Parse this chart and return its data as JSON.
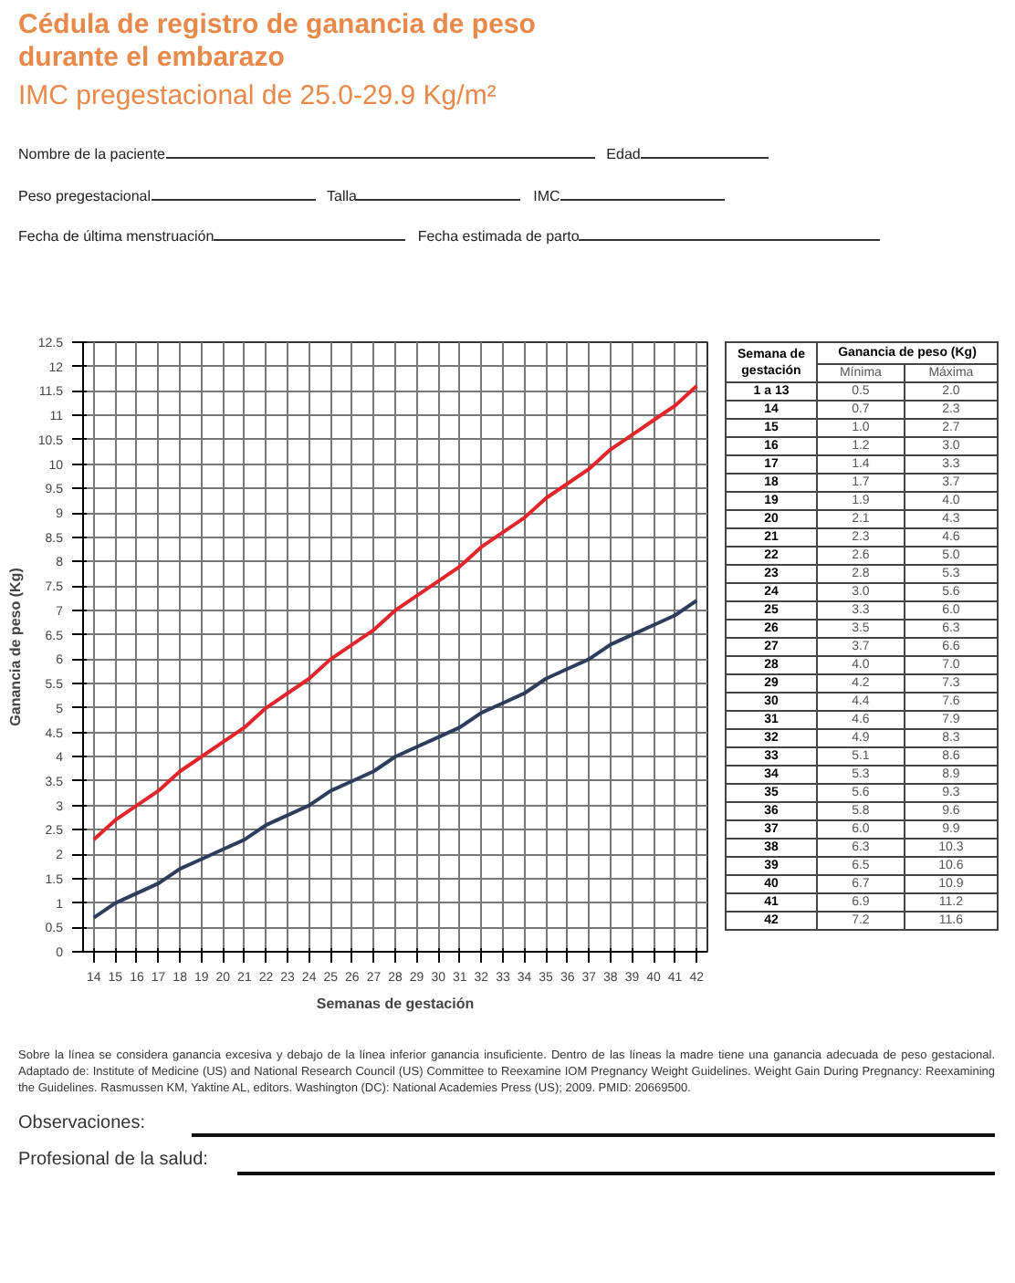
{
  "chart_data": [
    {
      "type": "line",
      "title": "Cédula de registro de ganancia de peso durante el embarazo",
      "subtitle": "IMC pregestacional de 25.0-29.9 Kg/m²",
      "xlabel": "Semanas de gestación",
      "ylabel": "Ganancia de peso (Kg)",
      "x": [
        14,
        15,
        16,
        17,
        18,
        19,
        20,
        21,
        22,
        23,
        24,
        25,
        26,
        27,
        28,
        29,
        30,
        31,
        32,
        33,
        34,
        35,
        36,
        37,
        38,
        39,
        40,
        41,
        42
      ],
      "series": [
        {
          "color": "#e3242b",
          "values": [
            2.3,
            2.7,
            3.0,
            3.3,
            3.7,
            4.0,
            4.3,
            4.6,
            5.0,
            5.3,
            5.6,
            6.0,
            6.3,
            6.6,
            7.0,
            7.3,
            7.6,
            7.9,
            8.3,
            8.6,
            8.9,
            9.3,
            9.6,
            9.9,
            10.3,
            10.6,
            10.9,
            11.2,
            11.6
          ]
        },
        {
          "color": "#2e3d5c",
          "values": [
            0.7,
            1.0,
            1.2,
            1.4,
            1.7,
            1.9,
            2.1,
            2.3,
            2.6,
            2.8,
            3.0,
            3.3,
            3.5,
            3.7,
            4.0,
            4.2,
            4.4,
            4.6,
            4.9,
            5.1,
            5.3,
            5.6,
            5.8,
            6.0,
            6.3,
            6.5,
            6.7,
            6.9,
            7.2
          ]
        }
      ],
      "xlim": [
        13.5,
        42.5
      ],
      "ylim": [
        0,
        12.5
      ],
      "xticks": [
        14,
        15,
        16,
        17,
        18,
        19,
        20,
        21,
        22,
        23,
        24,
        25,
        26,
        27,
        28,
        29,
        30,
        31,
        32,
        33,
        34,
        35,
        36,
        37,
        38,
        39,
        40,
        41,
        42
      ],
      "yticks": [
        0,
        0.5,
        1,
        1.5,
        2,
        2.5,
        3,
        3.5,
        4,
        4.5,
        5,
        5.5,
        6,
        6.5,
        7,
        7.5,
        8,
        8.5,
        9,
        9.5,
        10,
        10.5,
        11,
        11.5,
        12,
        12.5
      ],
      "grid": true,
      "marker": "none",
      "line_style": "solid",
      "annotations": [
        "Nombre de la paciente",
        "Edad",
        "Peso pregestacional",
        "Talla",
        "IMC",
        "Fecha de última menstruación",
        "Fecha estimada de parto",
        "Sobre la línea se considera ganancia excesiva y debajo de la línea inferior ganancia insuficiente. Dentro de las líneas la madre tiene una ganancia adecuada de peso gestacional. Adaptado de: Institute of Medicine (US) and National Research Council (US) Committee to Reexamine IOM Pregnancy Weight Guidelines. Weight Gain During Pregnancy: Reexamining the Guidelines. Rasmussen KM, Yaktine AL, editors. Washington (DC): National Academies Press (US); 2009. PMID: 20669500.",
        "Observaciones:",
        "Profesional de la salud:"
      ]
    },
    {
      "type": "heatmap",
      "title": "Ganancia de peso (Kg)",
      "ylabel": "Semana de gestación",
      "categories": [
        "Mínima",
        "Máxima"
      ],
      "y_categories": [
        "1 a 13",
        "14",
        "15",
        "16",
        "17",
        "18",
        "19",
        "20",
        "21",
        "22",
        "23",
        "24",
        "25",
        "26",
        "27",
        "28",
        "29",
        "30",
        "31",
        "32",
        "33",
        "34",
        "35",
        "36",
        "37",
        "38",
        "39",
        "40",
        "41",
        "42"
      ],
      "cells": [
        [
          0.5,
          2.0
        ],
        [
          0.7,
          2.3
        ],
        [
          1.0,
          2.7
        ],
        [
          1.2,
          3.0
        ],
        [
          1.4,
          3.3
        ],
        [
          1.7,
          3.7
        ],
        [
          1.9,
          4.0
        ],
        [
          2.1,
          4.3
        ],
        [
          2.3,
          4.6
        ],
        [
          2.6,
          5.0
        ],
        [
          2.8,
          5.3
        ],
        [
          3.0,
          5.6
        ],
        [
          3.3,
          6.0
        ],
        [
          3.5,
          6.3
        ],
        [
          3.7,
          6.6
        ],
        [
          4.0,
          7.0
        ],
        [
          4.2,
          7.3
        ],
        [
          4.4,
          7.6
        ],
        [
          4.6,
          7.9
        ],
        [
          4.9,
          8.3
        ],
        [
          5.1,
          8.6
        ],
        [
          5.3,
          8.9
        ],
        [
          5.6,
          9.3
        ],
        [
          5.8,
          9.6
        ],
        [
          6.0,
          9.9
        ],
        [
          6.3,
          10.3
        ],
        [
          6.5,
          10.6
        ],
        [
          6.7,
          10.9
        ],
        [
          6.9,
          11.2
        ],
        [
          7.2,
          11.6
        ]
      ],
      "cell_labels": [
        [
          "0.5",
          "2.0"
        ],
        [
          "0.7",
          "2.3"
        ],
        [
          "1.0",
          "2.7"
        ],
        [
          "1.2",
          "3.0"
        ],
        [
          "1.4",
          "3.3"
        ],
        [
          "1.7",
          "3.7"
        ],
        [
          "1.9",
          "4.0"
        ],
        [
          "2.1",
          "4.3"
        ],
        [
          "2.3",
          "4.6"
        ],
        [
          "2.6",
          "5.0"
        ],
        [
          "2.8",
          "5.3"
        ],
        [
          "3.0",
          "5.6"
        ],
        [
          "3.3",
          "6.0"
        ],
        [
          "3.5",
          "6.3"
        ],
        [
          "3.7",
          "6.6"
        ],
        [
          "4.0",
          "7.0"
        ],
        [
          "4.2",
          "7.3"
        ],
        [
          "4.4",
          "7.6"
        ],
        [
          "4.6",
          "7.9"
        ],
        [
          "4.9",
          "8.3"
        ],
        [
          "5.1",
          "8.6"
        ],
        [
          "5.3",
          "8.9"
        ],
        [
          "5.6",
          "9.3"
        ],
        [
          "5.8",
          "9.6"
        ],
        [
          "6.0",
          "9.9"
        ],
        [
          "6.3",
          "10.3"
        ],
        [
          "6.5",
          "10.6"
        ],
        [
          "6.7",
          "10.9"
        ],
        [
          "6.9",
          "11.2"
        ],
        [
          "7.2",
          "11.6"
        ]
      ]
    }
  ]
}
